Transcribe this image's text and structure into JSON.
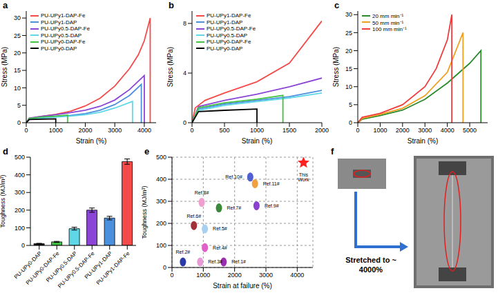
{
  "chart_data": [
    {
      "panel": "a",
      "type": "line",
      "x_label": "Strain (%)",
      "y_label": "Stress (MPa)",
      "xlim": [
        0,
        4400
      ],
      "xticks": [
        0,
        1000,
        2000,
        3000,
        4000
      ],
      "ylim": [
        0,
        32
      ],
      "yticks": [
        0,
        5,
        10,
        15,
        20,
        25,
        30
      ],
      "legend": "upper left",
      "series": [
        {
          "name": "PU-UPy1-DAP-Fe",
          "color": "#f44a4a",
          "x": [
            0,
            100,
            500,
            1000,
            1500,
            2000,
            2500,
            3000,
            3500,
            3800,
            4000,
            4200,
            4200
          ],
          "values": [
            0,
            1.2,
            1.8,
            2.4,
            3.3,
            4.8,
            7,
            10.5,
            15.5,
            19.5,
            23.5,
            30,
            0
          ]
        },
        {
          "name": "PU-UPy1-DAP",
          "color": "#4b8fdf",
          "x": [
            0,
            100,
            500,
            1000,
            1500,
            2000,
            2500,
            3000,
            3500,
            3900,
            3900
          ],
          "values": [
            0,
            1.1,
            1.5,
            1.8,
            2.1,
            2.6,
            3.6,
            5.2,
            7.8,
            11,
            0
          ]
        },
        {
          "name": "PU-UPy0.5-DAP-Fe",
          "color": "#8b45d6",
          "x": [
            0,
            100,
            500,
            1000,
            1500,
            2000,
            2500,
            3000,
            3500,
            4000,
            4000
          ],
          "values": [
            0,
            1.3,
            1.8,
            2.3,
            2.9,
            3.6,
            4.7,
            6.5,
            9.5,
            13.5,
            0
          ]
        },
        {
          "name": "PU-UPy0.5-DAP",
          "color": "#5fd7e6",
          "x": [
            0,
            100,
            500,
            1000,
            1500,
            2000,
            2500,
            3000,
            3600,
            3600
          ],
          "values": [
            0,
            1,
            1.3,
            1.6,
            1.9,
            2.3,
            3,
            4.2,
            6.1,
            0
          ]
        },
        {
          "name": "PU-UPy0-DAP-Fe",
          "color": "#44c244",
          "x": [
            0,
            100,
            500,
            1000,
            1400,
            1400
          ],
          "values": [
            0,
            1.2,
            1.6,
            1.9,
            2.2,
            0
          ]
        },
        {
          "name": "PU-UPy0-DAP",
          "color": "#000000",
          "x": [
            0,
            100,
            500,
            1000,
            1000
          ],
          "values": [
            0,
            0.9,
            1,
            1.1,
            0
          ]
        }
      ]
    },
    {
      "panel": "b",
      "type": "line",
      "x_label": "Strain (%)",
      "y_label": "Stress (MPa)",
      "xlim": [
        0,
        2000
      ],
      "xticks": [
        0,
        500,
        1000,
        1500,
        2000
      ],
      "ylim": [
        0,
        9
      ],
      "yticks": [
        0,
        4,
        8
      ],
      "legend": "upper left",
      "series": [
        {
          "name": "PU-UPy1-DAP-Fe",
          "color": "#f44a4a",
          "x": [
            0,
            50,
            200,
            500,
            1000,
            1500,
            2000
          ],
          "values": [
            0,
            1.2,
            1.8,
            2.4,
            3.3,
            4.8,
            8.2
          ]
        },
        {
          "name": "PU-UPy1-DAP",
          "color": "#4b8fdf",
          "x": [
            0,
            100,
            500,
            1000,
            1500,
            2000
          ],
          "values": [
            0,
            1.1,
            1.5,
            1.8,
            2.1,
            2.6
          ]
        },
        {
          "name": "PU-UPy0.5-DAP-Fe",
          "color": "#8b45d6",
          "x": [
            0,
            100,
            500,
            1000,
            1500,
            2000
          ],
          "values": [
            0,
            1.3,
            1.8,
            2.3,
            2.9,
            3.6
          ]
        },
        {
          "name": "PU-UPy0.5-DAP",
          "color": "#5fd7e6",
          "x": [
            0,
            100,
            500,
            1000,
            1500,
            2000
          ],
          "values": [
            0,
            1,
            1.4,
            1.7,
            2,
            2.4
          ]
        },
        {
          "name": "PU-UPy0-DAP-Fe",
          "color": "#44c244",
          "x": [
            0,
            100,
            500,
            1000,
            1400,
            1400
          ],
          "values": [
            0,
            1.2,
            1.6,
            1.9,
            2.2,
            0
          ]
        },
        {
          "name": "PU-UPy0-DAP",
          "color": "#000000",
          "x": [
            0,
            100,
            500,
            1000,
            1000
          ],
          "values": [
            0,
            0.9,
            1,
            1.1,
            0
          ]
        }
      ]
    },
    {
      "panel": "c",
      "type": "line",
      "x_label": "Strain (%)",
      "y_label": "Stress (MPa)",
      "xlim": [
        0,
        5800
      ],
      "xticks": [
        0,
        1000,
        2000,
        3000,
        4000,
        5000
      ],
      "ylim": [
        0,
        31
      ],
      "yticks": [
        0,
        5,
        10,
        15,
        20,
        25,
        30
      ],
      "legend": "upper left",
      "series": [
        {
          "name": "20 mm min⁻¹",
          "color": "#2a8a2a",
          "x": [
            0,
            200,
            1000,
            2000,
            3000,
            4000,
            5000,
            5500,
            5500
          ],
          "values": [
            0,
            1,
            2,
            3.5,
            6.5,
            11,
            16.5,
            20,
            0
          ]
        },
        {
          "name": "50 mm min⁻¹",
          "color": "#f0a020",
          "x": [
            0,
            200,
            1000,
            2000,
            3000,
            4000,
            4700,
            4700
          ],
          "values": [
            0,
            1.2,
            2.3,
            4,
            7.5,
            14,
            25,
            0
          ]
        },
        {
          "name": "100 mm min⁻¹",
          "color": "#f03c3c",
          "x": [
            0,
            200,
            1000,
            2000,
            3000,
            3500,
            4000,
            4200,
            4200
          ],
          "values": [
            0,
            1.5,
            2.6,
            5,
            10,
            15,
            23,
            30,
            0
          ]
        }
      ]
    },
    {
      "panel": "d",
      "type": "bar",
      "y_label": "Toughness (MJ/m³)",
      "categories": [
        "PU-UPy0-DAP",
        "PU-UPy0-DAP-Fe",
        "PU-UPy0.5-DAP",
        "PU-UPy0.5-DAP-Fe",
        "PU-UPy1-DAP",
        "PU-UPy1-DAP-Fe"
      ],
      "values": [
        10,
        20,
        95,
        200,
        155,
        475
      ],
      "errors": [
        2,
        3,
        8,
        12,
        10,
        15
      ],
      "colors": [
        "#000000",
        "#44c244",
        "#5fd7e6",
        "#8b45d6",
        "#4b8fdf",
        "#f44a4a"
      ],
      "ylim": [
        0,
        500
      ],
      "yticks": [
        0,
        100,
        200,
        300,
        400,
        500
      ]
    },
    {
      "panel": "e",
      "type": "scatter",
      "x_label": "Strain at failure (%)",
      "y_label": "Toughness (MJ/m³)",
      "xlim": [
        0,
        4500
      ],
      "xticks": [
        0,
        1000,
        2000,
        3000,
        4000
      ],
      "ylim": [
        0,
        500
      ],
      "yticks": [
        0,
        100,
        200,
        300,
        400,
        500
      ],
      "grid": true,
      "series": [
        {
          "name": "Ref.1#",
          "color": "#9b2db0",
          "marker": "ellipse",
          "x": [
            1650
          ],
          "values": [
            25
          ]
        },
        {
          "name": "Ref.2#",
          "color": "#2b3aa8",
          "marker": "ellipse",
          "x": [
            350
          ],
          "values": [
            25
          ]
        },
        {
          "name": "Ref.3#",
          "color": "#e89ad8",
          "marker": "ellipse",
          "x": [
            900
          ],
          "values": [
            25
          ]
        },
        {
          "name": "Ref.4#",
          "color": "#e060c8",
          "marker": "ellipse",
          "x": [
            1050
          ],
          "values": [
            90
          ]
        },
        {
          "name": "Ref.5#",
          "color": "#a8d0f0",
          "marker": "ellipse",
          "x": [
            1050
          ],
          "values": [
            175
          ]
        },
        {
          "name": "Ref.6#",
          "color": "#a0303a",
          "marker": "ellipse",
          "x": [
            700
          ],
          "values": [
            190
          ]
        },
        {
          "name": "Ref.7#",
          "color": "#3a8a3a",
          "marker": "ellipse",
          "x": [
            1500
          ],
          "values": [
            270
          ]
        },
        {
          "name": "Ref.8#",
          "color": "#f0a0d0",
          "marker": "ellipse",
          "x": [
            950
          ],
          "values": [
            295
          ]
        },
        {
          "name": "Ref.9#",
          "color": "#8a40d0",
          "marker": "ellipse",
          "x": [
            2700
          ],
          "values": [
            280
          ]
        },
        {
          "name": "Ref.10#",
          "color": "#5060d0",
          "marker": "ellipse",
          "x": [
            2500
          ],
          "values": [
            410
          ]
        },
        {
          "name": "Ref.11#",
          "color": "#f0a040",
          "marker": "ellipse",
          "x": [
            2650
          ],
          "values": [
            380
          ]
        },
        {
          "name": "This Work",
          "color": "#ff2020",
          "marker": "star",
          "x": [
            4200
          ],
          "values": [
            475
          ]
        }
      ]
    },
    {
      "panel": "f",
      "type": "image",
      "annotations": [
        "Stretched to ~ 4000%"
      ]
    }
  ]
}
